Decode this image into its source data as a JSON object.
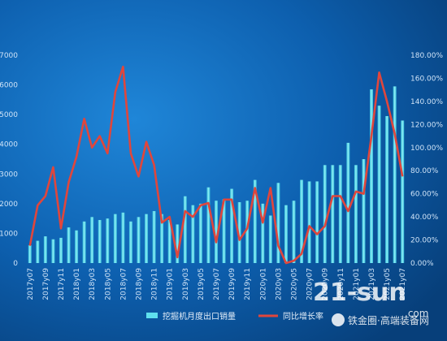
{
  "chart_data": {
    "type": "bar+line",
    "categories": [
      "2017y07",
      "2017y08",
      "2017y09",
      "2017y10",
      "2017y11",
      "2017y12",
      "2018y01",
      "2018y02",
      "2018y03",
      "2018y04",
      "2018y05",
      "2018y06",
      "2018y07",
      "2018y08",
      "2018y09",
      "2018y10",
      "2018y11",
      "2018y12",
      "2019y01",
      "2019y02",
      "2019y03",
      "2019y04",
      "2019y05",
      "2019y06",
      "2019y07",
      "2019y08",
      "2019y09",
      "2019y10",
      "2019y11",
      "2019y12",
      "2020y01",
      "2020y02",
      "2020y03",
      "2020y04",
      "2020y05",
      "2020y06",
      "2020y07",
      "2020y08",
      "2020y09",
      "2020y10",
      "2020y11",
      "2020y12",
      "2021y01",
      "2021y02",
      "2021y03",
      "2021y04",
      "2021y05",
      "2021y06",
      "2021y07"
    ],
    "x_tick_labels": [
      "2017y07",
      "2017y09",
      "2017y11",
      "2018y01",
      "2018y03",
      "2018y05",
      "2018y07",
      "2018y09",
      "2018y11",
      "2019y01",
      "2019y03",
      "2019y05",
      "2019y07",
      "2019y09",
      "2019y11",
      "2020y01",
      "2020y03",
      "2020y05",
      "2020y07",
      "2020y09",
      "2020y11",
      "2021y01",
      "2021y03",
      "2021y05",
      "2021y07"
    ],
    "series": [
      {
        "name": "挖掘机月度出口销量",
        "axis": "left",
        "type": "bar",
        "values": [
          600,
          750,
          900,
          800,
          850,
          1200,
          1100,
          1400,
          1550,
          1450,
          1500,
          1650,
          1700,
          1400,
          1550,
          1650,
          1750,
          1650,
          1450,
          1300,
          2250,
          1950,
          2000,
          2550,
          2100,
          2150,
          2500,
          2050,
          2100,
          2800,
          2000,
          1600,
          2700,
          1950,
          2100,
          2800,
          2750,
          2750,
          3300,
          3300,
          3300,
          4050,
          3300,
          3500,
          5850,
          5300,
          4950,
          5950,
          4800
        ],
        "color": "#5fe0ee"
      },
      {
        "name": "同比增长率",
        "axis": "right",
        "type": "line",
        "values": [
          15,
          50,
          58,
          83,
          30,
          70,
          92,
          125,
          100,
          110,
          95,
          148,
          170,
          95,
          75,
          105,
          85,
          35,
          40,
          5,
          45,
          40,
          50,
          52,
          18,
          55,
          55,
          20,
          30,
          65,
          35,
          65,
          15,
          0,
          2,
          8,
          32,
          25,
          32,
          58,
          58,
          45,
          62,
          60,
          110,
          165,
          140,
          112,
          75
        ],
        "color": "#e0463c"
      }
    ],
    "y_left": {
      "ticks": [
        "0",
        "1000",
        "2000",
        "3000",
        "4000",
        "5000",
        "6000",
        "7000"
      ],
      "range": [
        0,
        7000
      ]
    },
    "y_right": {
      "ticks": [
        "0.00%",
        "20.00%",
        "40.00%",
        "60.00%",
        "80.00%",
        "100.00%",
        "120.00%",
        "140.00%",
        "160.00%",
        "180.00%"
      ],
      "range": [
        0,
        180
      ]
    },
    "legend": {
      "placement": "bottom-center"
    },
    "grid": false
  },
  "watermark": {
    "logo_text": "21-sun",
    "sub_text": ".com",
    "wechat_text": "铁金圈·高端装备网"
  }
}
